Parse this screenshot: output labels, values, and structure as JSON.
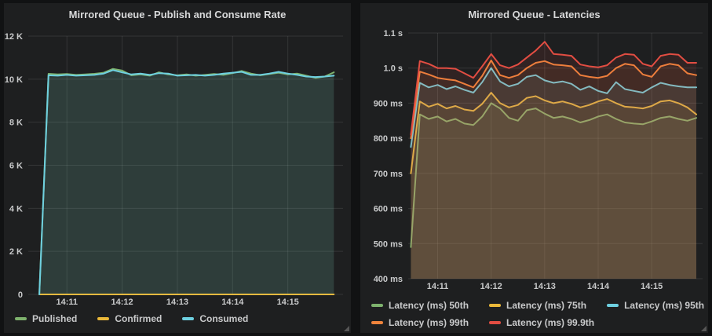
{
  "colors": {
    "page_background": "#111213",
    "panel_background": "#1e1f20",
    "grid": "rgba(255,255,255,0.10)",
    "axis_text": "#c9cacb",
    "title_text": "#d8d9da",
    "green": "#7eb26d",
    "yellow": "#eab839",
    "cyan": "#6ed0e0",
    "orange": "#ef843c",
    "red": "#e24d42"
  },
  "chart_data": [
    {
      "type": "area",
      "title": "Mirrored Queue - Publish and Consume Rate",
      "ylabel": "",
      "xlabel": "",
      "ylim": [
        0,
        12000
      ],
      "xlim_seconds": [
        -12,
        330
      ],
      "grid": true,
      "legend_position": "bottom-left",
      "y_ticks": [
        {
          "v": 0,
          "label": "0"
        },
        {
          "v": 2000,
          "label": "2 K"
        },
        {
          "v": 4000,
          "label": "4 K"
        },
        {
          "v": 6000,
          "label": "6 K"
        },
        {
          "v": 8000,
          "label": "8 K"
        },
        {
          "v": 10000,
          "label": "10 K"
        },
        {
          "v": 12000,
          "label": "12 K"
        }
      ],
      "x_ticks": [
        {
          "t": 30,
          "label": "14:11"
        },
        {
          "t": 90,
          "label": "14:12"
        },
        {
          "t": 150,
          "label": "14:13"
        },
        {
          "t": 210,
          "label": "14:14"
        },
        {
          "t": 270,
          "label": "14:15"
        }
      ],
      "x_seconds": [
        0,
        10,
        20,
        30,
        40,
        50,
        60,
        70,
        80,
        90,
        100,
        110,
        120,
        130,
        140,
        150,
        160,
        170,
        180,
        190,
        200,
        210,
        220,
        230,
        240,
        250,
        260,
        270,
        280,
        290,
        300,
        310,
        320
      ],
      "series": [
        {
          "name": "Published",
          "color": "#7eb26d",
          "values": [
            0,
            10250,
            10220,
            10240,
            10200,
            10220,
            10250,
            10300,
            10480,
            10400,
            10180,
            10220,
            10160,
            10320,
            10220,
            10180,
            10220,
            10160,
            10200,
            10240,
            10200,
            10280,
            10380,
            10260,
            10180,
            10240,
            10300,
            10220,
            10260,
            10160,
            10060,
            10120,
            10320
          ]
        },
        {
          "name": "Confirmed",
          "color": "#eab839",
          "values": [
            0,
            0,
            0,
            0,
            0,
            0,
            0,
            0,
            0,
            0,
            0,
            0,
            0,
            0,
            0,
            0,
            0,
            0,
            0,
            0,
            0,
            0,
            0,
            0,
            0,
            0,
            0,
            0,
            0,
            0,
            0,
            0,
            0
          ]
        },
        {
          "name": "Consumed",
          "color": "#6ed0e0",
          "values": [
            0,
            10180,
            10160,
            10200,
            10160,
            10180,
            10200,
            10260,
            10420,
            10320,
            10220,
            10260,
            10200,
            10280,
            10260,
            10160,
            10180,
            10200,
            10160,
            10200,
            10260,
            10300,
            10340,
            10200,
            10200,
            10260,
            10340,
            10260,
            10200,
            10120,
            10100,
            10120,
            10160
          ]
        }
      ],
      "legend_rows": [
        [
          0,
          1,
          2
        ]
      ]
    },
    {
      "type": "area",
      "title": "Mirrored Queue - Latencies",
      "ylabel": "",
      "xlabel": "",
      "ylim": [
        400,
        1100
      ],
      "xlim_seconds": [
        -3,
        327
      ],
      "grid": true,
      "legend_position": "bottom-left",
      "y_ticks": [
        {
          "v": 400,
          "label": "400 ms"
        },
        {
          "v": 500,
          "label": "500 ms"
        },
        {
          "v": 600,
          "label": "600 ms"
        },
        {
          "v": 700,
          "label": "700 ms"
        },
        {
          "v": 800,
          "label": "800 ms"
        },
        {
          "v": 900,
          "label": "900 ms"
        },
        {
          "v": 1000,
          "label": "1.0 s"
        },
        {
          "v": 1100,
          "label": "1.1 s"
        }
      ],
      "x_ticks": [
        {
          "t": 30,
          "label": "14:11"
        },
        {
          "t": 90,
          "label": "14:12"
        },
        {
          "t": 150,
          "label": "14:13"
        },
        {
          "t": 210,
          "label": "14:14"
        },
        {
          "t": 270,
          "label": "14:15"
        }
      ],
      "x_seconds": [
        0,
        10,
        20,
        30,
        40,
        50,
        60,
        70,
        80,
        90,
        100,
        110,
        120,
        130,
        140,
        150,
        160,
        170,
        180,
        190,
        200,
        210,
        220,
        230,
        240,
        250,
        260,
        270,
        280,
        290,
        300,
        310,
        320
      ],
      "series": [
        {
          "name": "Latency (ms) 50th",
          "color": "#7eb26d",
          "values": [
            490,
            868,
            855,
            862,
            848,
            855,
            842,
            838,
            862,
            900,
            885,
            858,
            850,
            880,
            885,
            870,
            858,
            862,
            855,
            845,
            852,
            862,
            868,
            855,
            845,
            842,
            840,
            848,
            858,
            862,
            855,
            850,
            858
          ]
        },
        {
          "name": "Latency (ms) 75th",
          "color": "#eab839",
          "values": [
            700,
            905,
            890,
            898,
            885,
            892,
            882,
            878,
            898,
            930,
            900,
            888,
            895,
            915,
            920,
            908,
            900,
            905,
            898,
            888,
            895,
            905,
            912,
            900,
            890,
            888,
            885,
            892,
            905,
            908,
            900,
            888,
            868
          ]
        },
        {
          "name": "Latency (ms) 95th",
          "color": "#6ed0e0",
          "values": [
            775,
            958,
            945,
            952,
            940,
            948,
            938,
            930,
            960,
            1000,
            962,
            948,
            955,
            975,
            980,
            965,
            958,
            962,
            955,
            938,
            948,
            935,
            928,
            960,
            940,
            935,
            930,
            945,
            958,
            952,
            948,
            945,
            945
          ]
        },
        {
          "name": "Latency (ms) 99th",
          "color": "#ef843c",
          "values": [
            800,
            990,
            982,
            972,
            968,
            965,
            955,
            945,
            978,
            1022,
            980,
            972,
            980,
            1000,
            1015,
            1020,
            1010,
            1008,
            1005,
            980,
            975,
            972,
            978,
            1000,
            1012,
            1008,
            982,
            975,
            1005,
            1012,
            1008,
            985,
            980
          ]
        },
        {
          "name": "Latency (ms) 99.9th",
          "color": "#e24d42",
          "values": [
            810,
            1020,
            1012,
            1000,
            1000,
            998,
            985,
            972,
            1005,
            1040,
            1008,
            1000,
            1010,
            1030,
            1050,
            1075,
            1040,
            1038,
            1035,
            1010,
            1005,
            1002,
            1008,
            1030,
            1040,
            1038,
            1012,
            1005,
            1035,
            1040,
            1038,
            1015,
            1015
          ]
        }
      ],
      "legend_rows": [
        [
          0,
          1,
          2
        ],
        [
          3,
          4
        ]
      ]
    }
  ]
}
